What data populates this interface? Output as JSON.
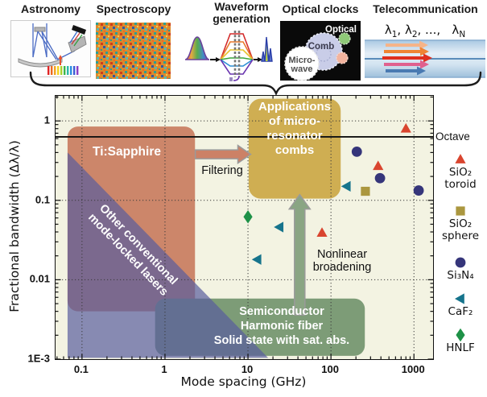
{
  "panels": {
    "astronomy": {
      "label": "Astronomy"
    },
    "spectroscopy": {
      "label": "Spectroscopy"
    },
    "waveform": {
      "label": "Waveform\ngeneration"
    },
    "clocks": {
      "label": "Optical clocks",
      "optical_label": "Optical",
      "comb_label": "Comb",
      "microwave_line1": "Micro-",
      "microwave_line2": "wave"
    },
    "telecom": {
      "label": "Telecommunication",
      "lambda_parts": [
        [
          "λ",
          "1"
        ],
        [
          ", λ",
          "2"
        ],
        [
          ", ...,   λ",
          "N"
        ]
      ]
    }
  },
  "chart_data": {
    "type": "scatter",
    "xlabel": "Mode spacing (GHz)",
    "ylabel": "Fractional bandwidth (Δλ/λ)",
    "xscale": "log",
    "yscale": "log",
    "xlim": [
      0.048,
      1700
    ],
    "ylim": [
      0.001,
      2.07
    ],
    "x_ticks": [
      0.1,
      1,
      10,
      100,
      1000
    ],
    "x_tick_labels": [
      "0.1",
      "1",
      "10",
      "100",
      "1000"
    ],
    "y_ticks": [
      1,
      0.1,
      0.01,
      0.001
    ],
    "y_tick_labels": [
      "1",
      "0.1",
      "0.01",
      "1E-3"
    ],
    "grid": "dotted-major",
    "background": "#f3f3e2",
    "octave_line": {
      "y": 0.63,
      "label": "Octave"
    },
    "series": [
      {
        "name": "SiO₂ toroid",
        "marker": "triangle-up",
        "color": "#d9452f",
        "points": [
          [
            800,
            0.8
          ],
          [
            370,
            0.27
          ],
          [
            78,
            0.039
          ]
        ]
      },
      {
        "name": "SiO₂ sphere",
        "marker": "square",
        "color": "#ab973f",
        "points": [
          [
            260,
            0.13
          ]
        ]
      },
      {
        "name": "Si₃N₄",
        "marker": "circle",
        "color": "#35357a",
        "points": [
          [
            205,
            0.41
          ],
          [
            390,
            0.19
          ],
          [
            1140,
            0.133
          ]
        ]
      },
      {
        "name": "CaF₂",
        "marker": "triangle-left",
        "color": "#16748c",
        "points": [
          [
            155,
            0.15
          ],
          [
            24,
            0.046
          ],
          [
            13,
            0.018
          ]
        ]
      },
      {
        "name": "HNLF",
        "marker": "diamond",
        "color": "#1e9147",
        "points": [
          [
            10,
            0.062
          ]
        ]
      }
    ],
    "regions": [
      {
        "name": "ti-sapphire",
        "label": "Ti:Sapphire",
        "shape": "rect",
        "x": [
          0.067,
          2.3
        ],
        "y": [
          0.004,
          0.85
        ],
        "color": "#c97f63",
        "opacity": 0.95,
        "radius": 13
      },
      {
        "name": "semiconductor",
        "label": "Semiconductor\nHarmonic fiber\nSolid state with sat. abs.",
        "shape": "rect",
        "x": [
          0.76,
          256
        ],
        "y": [
          0.0011,
          0.0058
        ],
        "color": "#7d9c77",
        "opacity": 1,
        "radius": 13
      },
      {
        "name": "conventional",
        "label": "Other conventional\nmode-locked lasers",
        "shape": "polygon",
        "points": [
          [
            0.067,
            0.4
          ],
          [
            17.5,
            0.00104
          ],
          [
            0.067,
            0.00104
          ]
        ],
        "color": "#585c9e",
        "opacity": 0.7
      },
      {
        "name": "microcombs",
        "label": "Applications\nof micro-\nresonator\ncombs",
        "shape": "rect",
        "x": [
          10.2,
          131
        ],
        "y": [
          0.105,
          1.9
        ],
        "color": "#cfae52",
        "opacity": 1,
        "radius": 15
      }
    ],
    "arrows": [
      {
        "name": "filtering",
        "label": "Filtering",
        "direction": "right",
        "from": [
          2.32,
          0.38
        ],
        "to": [
          10.8,
          0.38
        ],
        "color": "#cc8166"
      },
      {
        "name": "nonlinear",
        "label": "Nonlinear\nbroadening",
        "direction": "up",
        "from": [
          42,
          0.0036
        ],
        "to": [
          42,
          0.118
        ],
        "color": "#8aa583"
      }
    ]
  },
  "legend": {
    "items": [
      {
        "label": "SiO₂\ntoroid",
        "marker": "triangle-up",
        "color": "#d9452f"
      },
      {
        "label": "SiO₂\nsphere",
        "marker": "square",
        "color": "#ab973f"
      },
      {
        "label": "Si₃N₄",
        "marker": "circle",
        "color": "#35357a"
      },
      {
        "label": "CaF₂",
        "marker": "triangle-left",
        "color": "#16748c"
      },
      {
        "label": "HNLF",
        "marker": "diamond",
        "color": "#1e9147"
      }
    ]
  }
}
